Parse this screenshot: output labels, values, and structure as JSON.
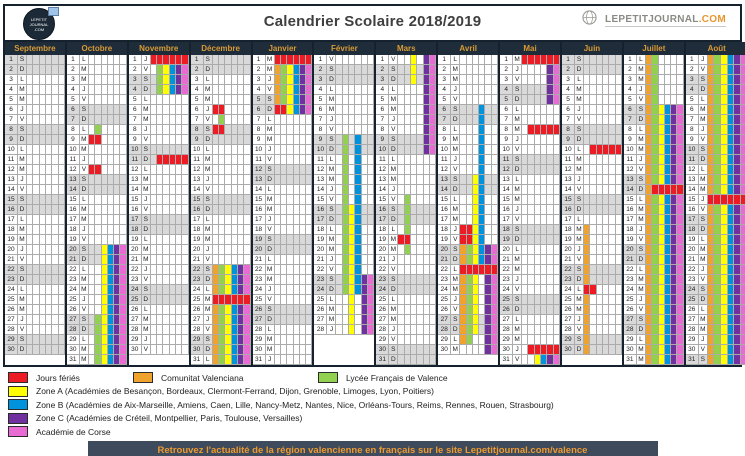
{
  "header": {
    "title": "Calendrier Scolaire 2018/2019",
    "logo_left_line1": "LEPETIT",
    "logo_left_line2": "JOURNAL",
    "logo_left_line3": ".COM",
    "logo_right_name": "LEPETITJOURNAL",
    "logo_right_tld": ".COM"
  },
  "colors": {
    "R": "#ed1c24",
    "O": "#f0a22e",
    "G": "#92d050",
    "Y": "#ffff00",
    "B": "#0093dd",
    "C": "#7030a0",
    "P": "#e76bd2",
    "weekend": "#d9d9d9",
    "weekday": "#ffffff",
    "header_bg": "#1f2c3a",
    "month_name": "#d89b35",
    "footer_bg": "#3d4b5c",
    "footer_text": "#ef9a30"
  },
  "day_letters_meaning": "L=lundi M=mardi M=mercredi J=jeudi V=vendredi S=samedi D=dimanche",
  "zone_columns_order": [
    "Comunitat Valenciana",
    "Lycée Français de Valence",
    "Zone A",
    "Zone B",
    "Zone C",
    "Académie de Corse"
  ],
  "months": [
    {
      "name": "Septembre",
      "letters": "SDLMMJVSDLMMJVSDLMMJVSDLMMJVSD",
      "marks": []
    },
    {
      "name": "Octobre",
      "letters": "LMMJVSDLMMJVSDLMMJVSDLMMJVSDLMM",
      "marks": [
        {
          "f": 8,
          "t": 8,
          "c": ".G...."
        },
        {
          "f": 9,
          "t": 9,
          "c": "RR...."
        },
        {
          "f": 12,
          "t": 12,
          "c": "RR...."
        },
        {
          "f": 20,
          "t": 26,
          "c": "..YBCP"
        },
        {
          "f": 27,
          "t": 31,
          "c": ".GYBCP"
        }
      ]
    },
    {
      "name": "Novembre",
      "letters": "JVSDLMMJVSDLMMJVSDLMMJVSDLMMJV",
      "marks": [
        {
          "f": 1,
          "t": 1,
          "c": "RRRRRR"
        },
        {
          "f": 2,
          "t": 4,
          "c": ".GYBCP"
        },
        {
          "f": 11,
          "t": 11,
          "c": ".RRRRR"
        }
      ]
    },
    {
      "name": "Décembre",
      "letters": "SDLMMJVSDLMMJVSDLMMJVSDLMMJVSDL",
      "marks": [
        {
          "f": 6,
          "t": 6,
          "c": "RR...."
        },
        {
          "f": 7,
          "t": 7,
          "c": ".G...."
        },
        {
          "f": 8,
          "t": 8,
          "c": "RR...."
        },
        {
          "f": 22,
          "t": 24,
          "c": "OGYBCP"
        },
        {
          "f": 25,
          "t": 25,
          "c": "RRRRRR"
        },
        {
          "f": 26,
          "t": 31,
          "c": "OGYBCP"
        }
      ]
    },
    {
      "name": "Janvier",
      "letters": "MMJVSDLMMJVSDLMMJVSDLMMJVSDLMMJ",
      "marks": [
        {
          "f": 1,
          "t": 1,
          "c": "RRRRRR"
        },
        {
          "f": 2,
          "t": 5,
          "c": "OGYBCP"
        },
        {
          "f": 6,
          "t": 6,
          "c": "RRYBCP"
        }
      ]
    },
    {
      "name": "Février",
      "letters": "VSDLMMJVSDLMMJVSDLMMJVSDLMMJ",
      "marks": [
        {
          "f": 9,
          "t": 15,
          "c": ".G.B.."
        },
        {
          "f": 16,
          "t": 22,
          "c": ".GYB.."
        },
        {
          "f": 23,
          "t": 24,
          "c": ".GYBCP"
        },
        {
          "f": 25,
          "t": 28,
          "c": "..Y.CP"
        }
      ]
    },
    {
      "name": "Mars",
      "letters": "VSDLMMJVSDLMMJVSDLMMJVSDLMMJVSD",
      "marks": [
        {
          "f": 1,
          "t": 3,
          "c": "..Y.CP"
        },
        {
          "f": 4,
          "t": 10,
          "c": "....CP"
        },
        {
          "f": 15,
          "t": 18,
          "c": ".G...."
        },
        {
          "f": 19,
          "t": 19,
          "c": "RR...."
        },
        {
          "f": 20,
          "t": 20,
          "c": ".G...."
        }
      ]
    },
    {
      "name": "Avril",
      "letters": "LMMJVSDLMMJVSDLMMJVSDLMMJVSDLM",
      "marks": [
        {
          "f": 6,
          "t": 12,
          "c": "...B.."
        },
        {
          "f": 13,
          "t": 17,
          "c": "..YB.."
        },
        {
          "f": 18,
          "t": 19,
          "c": "RRYB.."
        },
        {
          "f": 20,
          "t": 21,
          "c": "OGYBCP"
        },
        {
          "f": 22,
          "t": 22,
          "c": "RRRRRR"
        },
        {
          "f": 23,
          "t": 28,
          "c": "OGY.CP"
        },
        {
          "f": 29,
          "t": 29,
          "c": "OG..CP"
        },
        {
          "f": 30,
          "t": 30,
          "c": "....CP"
        }
      ]
    },
    {
      "name": "Mai",
      "letters": "MJVSDLMMJVSDLMMJVSDLMMJVSDLMMJV",
      "marks": [
        {
          "f": 1,
          "t": 1,
          "c": "RRRRRR"
        },
        {
          "f": 2,
          "t": 5,
          "c": "....CP"
        },
        {
          "f": 8,
          "t": 8,
          "c": ".RRRRR"
        },
        {
          "f": 30,
          "t": 30,
          "c": ".RRRRR"
        },
        {
          "f": 31,
          "t": 31,
          "c": "..YBCP"
        }
      ]
    },
    {
      "name": "Juin",
      "letters": "SDLMMJVSDLMMJVSDLMMJVSDLMMJVSD",
      "marks": [
        {
          "f": 10,
          "t": 10,
          "c": ".RRRRR"
        },
        {
          "f": 18,
          "t": 23,
          "c": "O....."
        },
        {
          "f": 24,
          "t": 24,
          "c": "RR...."
        },
        {
          "f": 25,
          "t": 30,
          "c": "O....."
        }
      ]
    },
    {
      "name": "Juillet",
      "letters": "LMMJVSDLMMJVSDLMMJVSDLMMJVSDLMM",
      "marks": [
        {
          "f": 1,
          "t": 5,
          "c": "OG...."
        },
        {
          "f": 6,
          "t": 13,
          "c": "OGYBCP"
        },
        {
          "f": 14,
          "t": 14,
          "c": "ORRRRR"
        },
        {
          "f": 15,
          "t": 31,
          "c": "OGYBCP"
        }
      ]
    },
    {
      "name": "Août",
      "letters": "JVSDLMMJVSDLMMJVSDLMMJVSDLMMJVS",
      "marks": [
        {
          "f": 1,
          "t": 14,
          "c": "OGYBCP"
        },
        {
          "f": 15,
          "t": 15,
          "c": "RRRRRR"
        },
        {
          "f": 16,
          "t": 31,
          "c": "OGYBCP"
        }
      ]
    }
  ],
  "legend": {
    "row1": [
      {
        "key": "R",
        "label": "Jours fériés"
      },
      {
        "key": "O",
        "label": "Comunitat Valenciana"
      },
      {
        "key": "G",
        "label": "Lycée Français de Valence"
      }
    ],
    "zones": [
      {
        "key": "Y",
        "label": "Zone A (Académies de Besançon, Bordeaux, Clermont-Ferrand, Dijon, Grenoble, Limoges, Lyon, Poitiers)"
      },
      {
        "key": "B",
        "label": "Zone B (Académies de Aix-Marseille, Amiens, Caen, Lille, Nancy-Metz, Nantes, Nice, Orléans-Tours, Reims, Rennes, Rouen, Strasbourg)"
      },
      {
        "key": "C",
        "label": "Zone C (Académies de Créteil, Montpellier, Paris, Toulouse, Versailles)"
      },
      {
        "key": "P",
        "label": "Académie de Corse"
      }
    ]
  },
  "footer": {
    "text": "Retrouvez l'actualité de la région valencienne en français sur le site Lepetitjournal.com/valence"
  }
}
